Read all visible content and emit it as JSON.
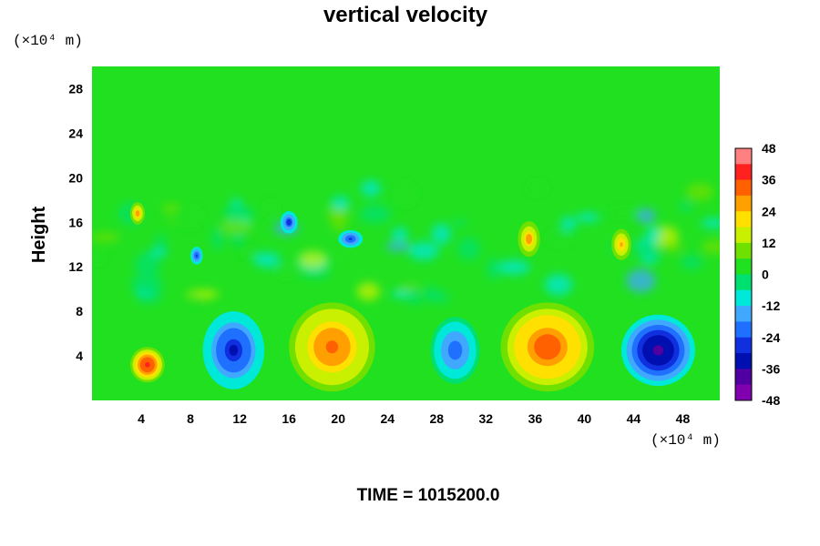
{
  "chart_data": {
    "type": "heatmap",
    "title": "vertical velocity",
    "xlabel": "",
    "ylabel": "Height",
    "x_unit": "(×10⁴ m)",
    "y_unit": "(×10⁴ m)",
    "xlim": [
      0,
      51
    ],
    "ylim": [
      0,
      30
    ],
    "x_ticks": [
      4,
      8,
      12,
      16,
      20,
      24,
      28,
      32,
      36,
      40,
      44,
      48
    ],
    "y_ticks": [
      4,
      8,
      12,
      16,
      20,
      24,
      28
    ],
    "colorbar": {
      "min": -48,
      "max": 48,
      "ticks": [
        48,
        36,
        24,
        12,
        0,
        -12,
        -24,
        -36,
        -48
      ],
      "colors": [
        "#ff8080",
        "#ff2020",
        "#ff6000",
        "#ffa000",
        "#ffe000",
        "#c8f000",
        "#70e000",
        "#20e020",
        "#00e070",
        "#00e8d8",
        "#40a8ff",
        "#2070ff",
        "#1030e0",
        "#0010b0",
        "#5000a0",
        "#8000b0"
      ]
    },
    "cells": [
      {
        "x": 4.5,
        "y": 3.2,
        "value": 40,
        "rx": 1.4,
        "ry": 1.6
      },
      {
        "x": 11.5,
        "y": 4.5,
        "value": -30,
        "rx": 2.5,
        "ry": 3.5
      },
      {
        "x": 19.5,
        "y": 4.8,
        "value": 34,
        "rx": 3.5,
        "ry": 4.0
      },
      {
        "x": 29.5,
        "y": 4.5,
        "value": -22,
        "rx": 2.0,
        "ry": 3.0
      },
      {
        "x": 37.0,
        "y": 4.8,
        "value": 36,
        "rx": 3.8,
        "ry": 4.0
      },
      {
        "x": 46.0,
        "y": 4.5,
        "value": -40,
        "rx": 3.0,
        "ry": 3.2
      },
      {
        "x": 35.5,
        "y": 14.5,
        "value": 28,
        "rx": 0.9,
        "ry": 1.6
      },
      {
        "x": 43.0,
        "y": 14.0,
        "value": 26,
        "rx": 0.8,
        "ry": 1.4
      },
      {
        "x": 3.7,
        "y": 16.8,
        "value": 28,
        "rx": 0.6,
        "ry": 1.0
      },
      {
        "x": 16.0,
        "y": 16.0,
        "value": -28,
        "rx": 0.7,
        "ry": 1.0
      },
      {
        "x": 21.0,
        "y": 14.5,
        "value": -26,
        "rx": 1.0,
        "ry": 0.8
      },
      {
        "x": 8.5,
        "y": 13.0,
        "value": -24,
        "rx": 0.5,
        "ry": 0.8
      }
    ],
    "annotation": "TIME = 1015200.0"
  }
}
